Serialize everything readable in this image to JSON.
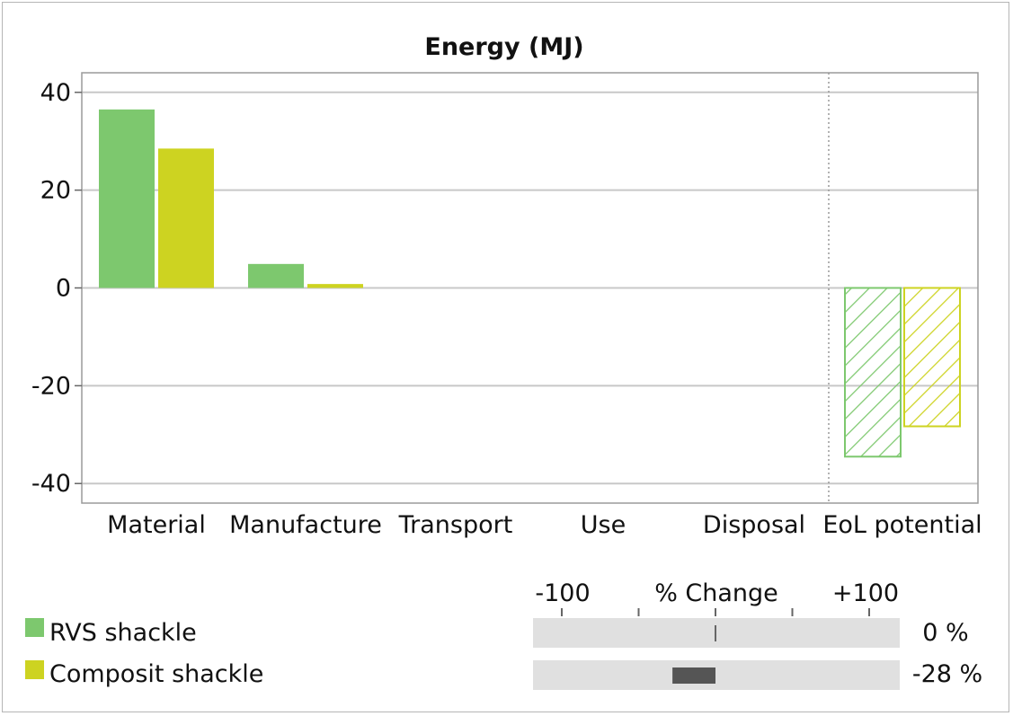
{
  "chart_data": {
    "type": "bar",
    "title": "Energy (MJ)",
    "categories": [
      "Material",
      "Manufacture",
      "Transport",
      "Use",
      "Disposal",
      "EoL potential"
    ],
    "ylim": [
      -44,
      44
    ],
    "yticks": [
      40,
      20,
      0,
      -20,
      -40
    ],
    "ytick_labels": [
      "40",
      "20",
      "0",
      "-20",
      "-40"
    ],
    "grid": true,
    "hatched_categories": [
      "EoL potential"
    ],
    "series": [
      {
        "name": "RVS shackle",
        "color": "#7dc86e",
        "values": [
          36.5,
          4.9,
          0,
          0,
          0,
          -34.5
        ]
      },
      {
        "name": "Composit shackle",
        "color": "#cdd321",
        "values": [
          28.5,
          0.8,
          0,
          0,
          0,
          -28.3
        ]
      }
    ]
  },
  "change_panel": {
    "axis_min_label": "-100",
    "axis_title": "% Change",
    "axis_max_label": "+100",
    "scale_min": -100,
    "scale_max": 100,
    "rows": [
      {
        "name": "RVS shackle",
        "change": 0,
        "label": "0 %"
      },
      {
        "name": "Composit shackle",
        "change": -28,
        "label": "-28 %"
      }
    ]
  },
  "colors": {
    "bar_fill_dark": "#555555",
    "track": "#e0e0e0",
    "grid": "#c8c8c8",
    "frame": "#9a9a9a"
  }
}
